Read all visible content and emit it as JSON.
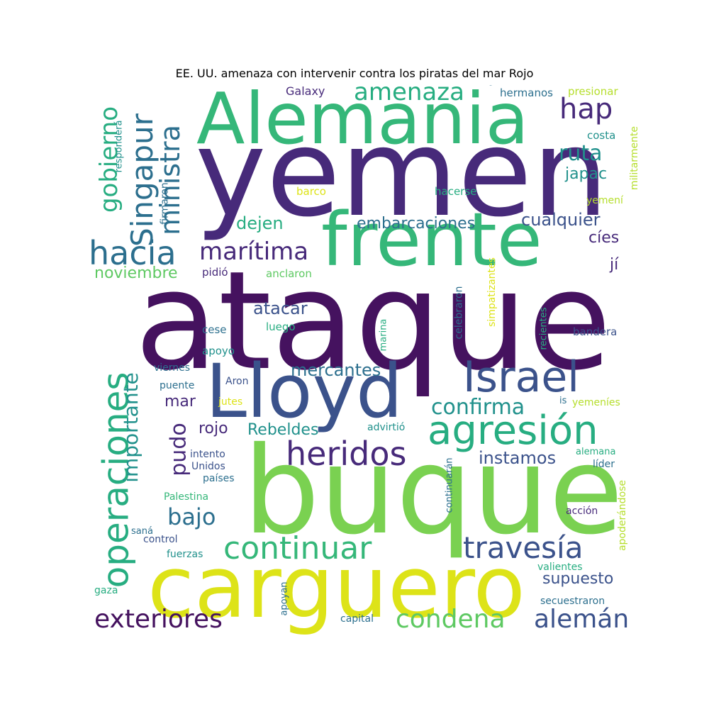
{
  "title": "EE. UU. amenaza con intervenir contra los piratas del mar Rojo",
  "palette": {
    "dark_purple": "#45125f",
    "purple": "#472a7a",
    "indigo": "#3b528b",
    "blue": "#2c6f8e",
    "teal": "#21918c",
    "green_teal": "#27ad81",
    "green": "#35b779",
    "light_green": "#5ec962",
    "lime": "#7ad151",
    "yellow_green": "#b5de2b",
    "yellow": "#dde318"
  },
  "words": [
    {
      "id": "ataque",
      "text": "ataque",
      "color": "#45125f"
    },
    {
      "id": "buque",
      "text": "buque",
      "color": "#7ad151"
    },
    {
      "id": "yemen",
      "text": "yemen",
      "color": "#472a7a"
    },
    {
      "id": "carguero",
      "text": "carguero",
      "color": "#dde318"
    },
    {
      "id": "alemania",
      "text": "Alemania",
      "color": "#35b779"
    },
    {
      "id": "frente",
      "text": "frente",
      "color": "#35b779"
    },
    {
      "id": "lloyd",
      "text": "Lloyd",
      "color": "#3b528b"
    },
    {
      "id": "operaciones",
      "text": "operaciones",
      "color": "#27ad81"
    },
    {
      "id": "agresion",
      "text": "agresión",
      "color": "#27ad81"
    },
    {
      "id": "israel",
      "text": "Israel",
      "color": "#3b528b"
    },
    {
      "id": "heridos",
      "text": "heridos",
      "color": "#472a7a"
    },
    {
      "id": "continuar",
      "text": "continuar",
      "color": "#35b779"
    },
    {
      "id": "travesia",
      "text": "travesía",
      "color": "#3b528b"
    },
    {
      "id": "hacia",
      "text": "hacia",
      "color": "#2c6f8e"
    },
    {
      "id": "singapur",
      "text": "Singapur",
      "color": "#2c6f8e"
    },
    {
      "id": "ministra",
      "text": "ministra",
      "color": "#2c6f8e"
    },
    {
      "id": "exteriores",
      "text": "exteriores",
      "color": "#45125f"
    },
    {
      "id": "condena",
      "text": "condena",
      "color": "#5ec962"
    },
    {
      "id": "aleman",
      "text": "alemán",
      "color": "#3b528b"
    },
    {
      "id": "amenaza",
      "text": "amenaza",
      "color": "#27ad81"
    },
    {
      "id": "hap",
      "text": "hap",
      "color": "#472a7a"
    },
    {
      "id": "gobierno",
      "text": "gobierno",
      "color": "#27ad81"
    },
    {
      "id": "maritima",
      "text": "marítima",
      "color": "#472a7a"
    },
    {
      "id": "confirma",
      "text": "confirma",
      "color": "#21918c"
    },
    {
      "id": "importante",
      "text": "importante",
      "color": "#21918c"
    },
    {
      "id": "pudo",
      "text": "pudo",
      "color": "#472a7a"
    },
    {
      "id": "ruta",
      "text": "ruta",
      "color": "#21918c"
    },
    {
      "id": "bajo",
      "text": "bajo",
      "color": "#2c6f8e"
    },
    {
      "id": "embarcaciones",
      "text": "embarcaciones",
      "color": "#2c6f8e"
    },
    {
      "id": "cualquier",
      "text": "cualquier",
      "color": "#3b528b"
    },
    {
      "id": "mercantes",
      "text": "mercantes",
      "color": "#2c6f8e"
    },
    {
      "id": "instamos",
      "text": "instamos",
      "color": "#3b528b"
    },
    {
      "id": "supuesto",
      "text": "supuesto",
      "color": "#3b528b"
    },
    {
      "id": "japac",
      "text": "japac",
      "color": "#21918c"
    },
    {
      "id": "noviembre",
      "text": "noviembre",
      "color": "#5ec962"
    },
    {
      "id": "atacar",
      "text": "atacar",
      "color": "#3b528b"
    },
    {
      "id": "dejen",
      "text": "dejen",
      "color": "#27ad81"
    },
    {
      "id": "rojo",
      "text": "rojo",
      "color": "#472a7a"
    },
    {
      "id": "rebeldes",
      "text": "Rebeldes",
      "color": "#21918c"
    },
    {
      "id": "mar",
      "text": "mar",
      "color": "#472a7a"
    },
    {
      "id": "cies",
      "text": "cíes",
      "color": "#472a7a"
    },
    {
      "id": "ji",
      "text": "jí",
      "color": "#472a7a"
    },
    {
      "id": "galaxy",
      "text": "Galaxy",
      "color": "#472a7a"
    },
    {
      "id": "hermanos",
      "text": "hermanos",
      "color": "#2c6f8e"
    },
    {
      "id": "presionar",
      "text": "presionar",
      "color": "#b5de2b"
    },
    {
      "id": "costa",
      "text": "costa",
      "color": "#21918c"
    },
    {
      "id": "militarmente",
      "text": "militarmente",
      "color": "#b5de2b"
    },
    {
      "id": "respondera",
      "text": "responderá",
      "color": "#21918c"
    },
    {
      "id": "firmaron",
      "text": "firmaron",
      "color": "#2c6f8e"
    },
    {
      "id": "barco",
      "text": "barco",
      "color": "#dde318"
    },
    {
      "id": "hacerse",
      "text": "hacerse",
      "color": "#27ad81"
    },
    {
      "id": "yemeni",
      "text": "yemení",
      "color": "#b5de2b"
    },
    {
      "id": "pidio",
      "text": "pidió",
      "color": "#472a7a"
    },
    {
      "id": "anclaron",
      "text": "anclaron",
      "color": "#5ec962"
    },
    {
      "id": "simpatizantes",
      "text": "simpatizantes",
      "color": "#dde318"
    },
    {
      "id": "celebraron",
      "text": "celebraron",
      "color": "#2c6f8e"
    },
    {
      "id": "recientes",
      "text": "recientes",
      "color": "#27ad81"
    },
    {
      "id": "marina",
      "text": "marina",
      "color": "#27ad81"
    },
    {
      "id": "luego",
      "text": "luego",
      "color": "#27ad81"
    },
    {
      "id": "cese",
      "text": "cese",
      "color": "#2c6f8e"
    },
    {
      "id": "bandera",
      "text": "bandera",
      "color": "#3b528b"
    },
    {
      "id": "apoyo",
      "text": "apoyo",
      "color": "#21918c"
    },
    {
      "id": "viernes",
      "text": "viernes",
      "color": "#2c6f8e"
    },
    {
      "id": "aron",
      "text": "Aron",
      "color": "#3b528b"
    },
    {
      "id": "puente",
      "text": "puente",
      "color": "#2c6f8e"
    },
    {
      "id": "jutes",
      "text": "jutes",
      "color": "#dde318"
    },
    {
      "id": "is",
      "text": "is",
      "color": "#2c6f8e"
    },
    {
      "id": "yemenies",
      "text": "yemeníes",
      "color": "#b5de2b"
    },
    {
      "id": "advirtio",
      "text": "advirtió",
      "color": "#21918c"
    },
    {
      "id": "intento",
      "text": "intento",
      "color": "#3b528b"
    },
    {
      "id": "unidos",
      "text": "Unidos",
      "color": "#3b528b"
    },
    {
      "id": "paises",
      "text": "países",
      "color": "#2c6f8e"
    },
    {
      "id": "alemana",
      "text": "alemana",
      "color": "#27ad81"
    },
    {
      "id": "lider",
      "text": "líder",
      "color": "#2c6f8e"
    },
    {
      "id": "continuaran",
      "text": "continuarán",
      "color": "#2c6f8e"
    },
    {
      "id": "apoderandose",
      "text": "apoderándose",
      "color": "#b5de2b"
    },
    {
      "id": "palestina",
      "text": "Palestina",
      "color": "#35b779"
    },
    {
      "id": "accion",
      "text": "acción",
      "color": "#472a7a"
    },
    {
      "id": "sana",
      "text": "saná",
      "color": "#2c6f8e"
    },
    {
      "id": "control",
      "text": "control",
      "color": "#3b528b"
    },
    {
      "id": "fuerzas",
      "text": "fuerzas",
      "color": "#21918c"
    },
    {
      "id": "valientes",
      "text": "valientes",
      "color": "#27ad81"
    },
    {
      "id": "gaza",
      "text": "gaza",
      "color": "#27ad81"
    },
    {
      "id": "apoyan",
      "text": "apoyan",
      "color": "#2c6f8e"
    },
    {
      "id": "secuestraron",
      "text": "secuestraron",
      "color": "#2c6f8e"
    },
    {
      "id": "capital",
      "text": "capital",
      "color": "#2c6f8e"
    }
  ]
}
